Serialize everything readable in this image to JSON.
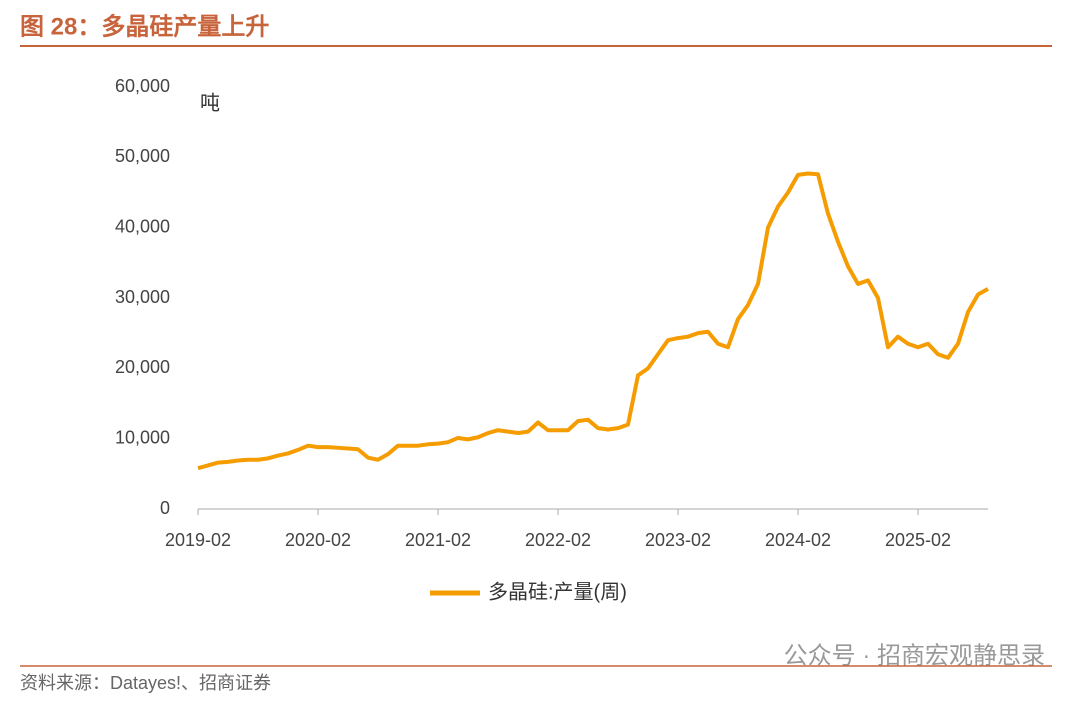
{
  "title": "图 28：多晶硅产量上升",
  "source": "资料来源：Datayes!、招商证券",
  "watermark": "公众号 · 招商宏观静思录",
  "chart_data": {
    "type": "line",
    "y_label": "吨",
    "x": [
      "2019-02",
      "2019-03",
      "2019-04",
      "2019-05",
      "2019-06",
      "2019-07",
      "2019-08",
      "2019-09",
      "2019-10",
      "2019-11",
      "2019-12",
      "2020-01",
      "2020-02",
      "2020-03",
      "2020-04",
      "2020-05",
      "2020-06",
      "2020-07",
      "2020-08",
      "2020-09",
      "2020-10",
      "2020-11",
      "2020-12",
      "2021-01",
      "2021-02",
      "2021-03",
      "2021-04",
      "2021-05",
      "2021-06",
      "2021-07",
      "2021-08",
      "2021-09",
      "2021-10",
      "2021-11",
      "2021-12",
      "2022-01",
      "2022-02",
      "2022-03",
      "2022-04",
      "2022-05",
      "2022-06",
      "2022-07",
      "2022-08",
      "2022-09",
      "2022-10",
      "2022-11",
      "2022-12",
      "2023-01",
      "2023-02",
      "2023-03",
      "2023-04",
      "2023-05",
      "2023-06",
      "2023-07",
      "2023-08",
      "2023-09",
      "2023-10",
      "2023-11",
      "2023-12",
      "2024-01",
      "2024-02",
      "2024-03",
      "2024-04",
      "2024-05",
      "2024-06",
      "2024-07",
      "2024-08",
      "2024-09",
      "2024-10",
      "2024-11",
      "2024-12",
      "2025-01",
      "2025-02",
      "2025-03",
      "2025-04",
      "2025-05",
      "2025-06",
      "2025-07",
      "2025-08",
      "2025-09"
    ],
    "series": [
      {
        "name": "多晶硅:产量(周)",
        "color": "#f59c00",
        "values": [
          5800,
          6200,
          6600,
          6700,
          6900,
          7000,
          7000,
          7200,
          7600,
          7900,
          8400,
          9000,
          8800,
          8800,
          8700,
          8600,
          8500,
          7300,
          7000,
          7800,
          9000,
          9000,
          9000,
          9200,
          9300,
          9500,
          10100,
          9900,
          10200,
          10800,
          11200,
          11000,
          10800,
          11000,
          12300,
          11200,
          11200,
          11200,
          12500,
          12700,
          11500,
          11300,
          11500,
          12000,
          19000,
          20000,
          22000,
          24000,
          24300,
          24500,
          25000,
          25200,
          23500,
          23000,
          27000,
          29000,
          32000,
          40000,
          43000,
          45000,
          47500,
          47700,
          47600,
          42000,
          38000,
          34500,
          32000,
          32500,
          30000,
          23000,
          24500,
          23500,
          23000,
          23500,
          22000,
          21500,
          23500,
          28000,
          30500,
          31300
        ]
      }
    ],
    "ylim": [
      0,
      60000
    ],
    "yticks": [
      0,
      {
        "value": 10000,
        "label": "10,000"
      },
      {
        "value": 20000,
        "label": "20,000"
      },
      {
        "value": 30000,
        "label": "30,000"
      },
      {
        "value": 40000,
        "label": "40,000"
      },
      {
        "value": 50000,
        "label": "50,000"
      },
      {
        "value": 60000,
        "label": "60,000"
      }
    ],
    "xticks": [
      "2019-02",
      "2020-02",
      "2021-02",
      "2022-02",
      "2023-02",
      "2024-02",
      "2025-02"
    ],
    "grid": false
  }
}
